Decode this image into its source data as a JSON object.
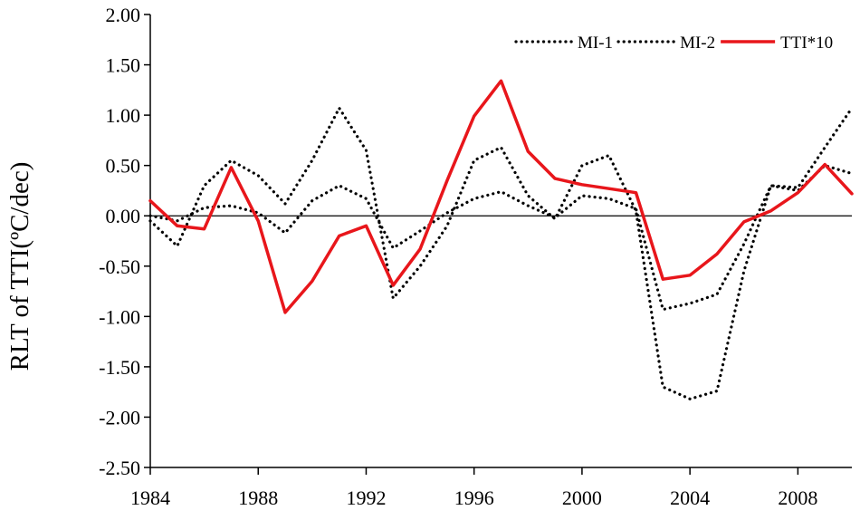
{
  "chart_data": {
    "type": "line",
    "title": "",
    "xlabel": "",
    "ylabel": "RLT of  TTI(ºC/dec)",
    "xlim": [
      1984,
      2010
    ],
    "ylim": [
      -2.5,
      2.0
    ],
    "xticks": [
      "1984",
      "1988",
      "1992",
      "1996",
      "2000",
      "2004",
      "2008"
    ],
    "xtick_values": [
      1984,
      1988,
      1992,
      1996,
      2000,
      2004,
      2008
    ],
    "yticks": [
      "2.00",
      "1.50",
      "1.00",
      "0.50",
      "0.00",
      "-0.50",
      "-1.00",
      "-1.50",
      "-2.00",
      "-2.50"
    ],
    "ytick_values": [
      2.0,
      1.5,
      1.0,
      0.5,
      0.0,
      -0.5,
      -1.0,
      -1.5,
      -2.0,
      -2.5
    ],
    "grid": false,
    "zero_line": true,
    "legend_position": "top-right",
    "x": [
      1984,
      1985,
      1986,
      1987,
      1988,
      1989,
      1990,
      1991,
      1992,
      1993,
      1994,
      1995,
      1996,
      1997,
      1998,
      1999,
      2000,
      2001,
      2002,
      2003,
      2004,
      2005,
      2006,
      2007,
      2008,
      2009,
      2010
    ],
    "series": [
      {
        "name": "MI-1",
        "style": "dotted",
        "color": "#000000",
        "values": [
          -0.05,
          -0.3,
          0.3,
          0.55,
          0.4,
          0.12,
          0.55,
          1.07,
          0.65,
          -0.82,
          -0.5,
          -0.1,
          0.55,
          0.68,
          0.2,
          -0.03,
          0.5,
          0.6,
          0.05,
          -1.7,
          -1.82,
          -1.74,
          -0.55,
          0.3,
          0.28,
          0.68,
          1.07
        ]
      },
      {
        "name": "MI-2",
        "style": "dotted",
        "color": "#000000",
        "values": [
          0.0,
          -0.05,
          0.08,
          0.1,
          0.03,
          -0.17,
          0.15,
          0.3,
          0.17,
          -0.32,
          -0.15,
          0.03,
          0.17,
          0.24,
          0.1,
          -0.02,
          0.2,
          0.17,
          0.07,
          -0.93,
          -0.87,
          -0.78,
          -0.28,
          0.3,
          0.25,
          0.5,
          0.42
        ]
      },
      {
        "name": "TTI*10",
        "style": "solid",
        "color": "#e8161b",
        "values": [
          0.15,
          -0.1,
          -0.13,
          0.48,
          -0.05,
          -0.96,
          -0.65,
          -0.2,
          -0.1,
          -0.69,
          -0.33,
          0.35,
          0.99,
          1.34,
          0.64,
          0.37,
          0.31,
          0.27,
          0.23,
          -0.63,
          -0.59,
          -0.38,
          -0.06,
          0.05,
          0.23,
          0.51,
          0.22
        ]
      }
    ]
  }
}
